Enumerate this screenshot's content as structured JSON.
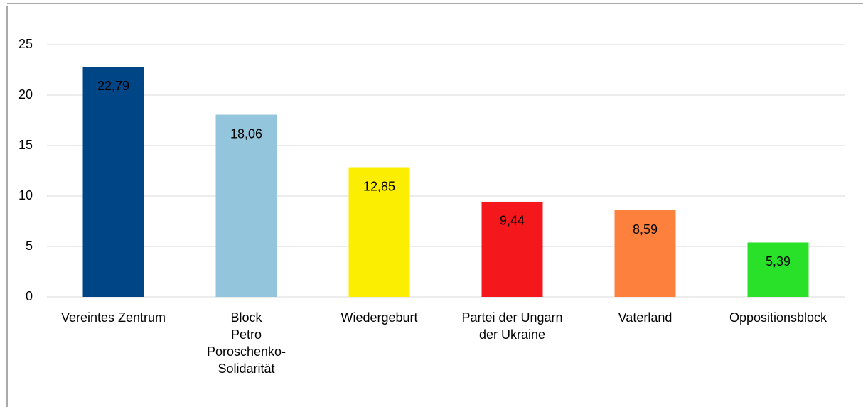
{
  "chart_data": {
    "type": "bar",
    "categories": [
      [
        "Vereintes Zentrum"
      ],
      [
        "Block",
        "Petro",
        "Poroschenko-",
        "Solidarität"
      ],
      [
        "Wiedergeburt"
      ],
      [
        "Partei der Ungarn",
        "der Ukraine"
      ],
      [
        "Vaterland"
      ],
      [
        "Oppositionsblock"
      ]
    ],
    "values": [
      22.79,
      18.06,
      12.85,
      9.44,
      8.59,
      5.39
    ],
    "value_labels": [
      "22,79",
      "18,06",
      "12,85",
      "9,44",
      "8,59",
      "5,39"
    ],
    "colors": [
      "#004586",
      "#93c6dd",
      "#fcee00",
      "#f4181c",
      "#fd803d",
      "#2ae12a"
    ],
    "label_colors": [
      "#ffffff",
      "#000000",
      "#000000",
      "#ffffff",
      "#000000",
      "#000000"
    ],
    "ylim": [
      0,
      25
    ],
    "yticks": [
      0,
      5,
      10,
      15,
      20,
      25
    ],
    "grid": true
  }
}
